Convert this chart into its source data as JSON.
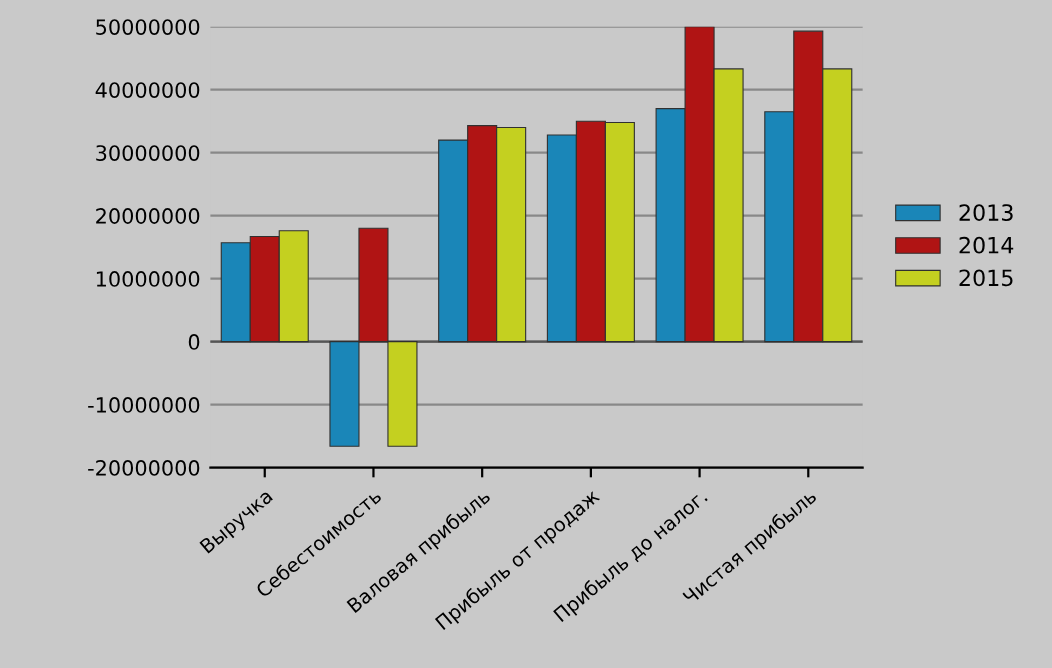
{
  "chart_data": {
    "type": "bar",
    "categories": [
      "Выручка",
      "Себестоимость",
      "Валовая прибыль",
      "Прибыль от продаж",
      "Прибыль до налог.",
      "Чистая прибыль"
    ],
    "series": [
      {
        "name": "2013",
        "color": "#1a86b8",
        "values": [
          15700000,
          -16600000,
          32000000,
          32800000,
          37000000,
          36500000
        ]
      },
      {
        "name": "2014",
        "color": "#b01414",
        "values": [
          16700000,
          18000000,
          34300000,
          35000000,
          50000000,
          49300000
        ]
      },
      {
        "name": "2015",
        "color": "#c4d020",
        "values": [
          17600000,
          -16600000,
          34000000,
          34800000,
          43300000,
          43300000
        ]
      }
    ],
    "ylim": [
      -20000000,
      50000000
    ],
    "yticks": [
      -20000000,
      -10000000,
      0,
      10000000,
      20000000,
      30000000,
      40000000,
      50000000
    ],
    "grid": "y",
    "legend": "right"
  }
}
